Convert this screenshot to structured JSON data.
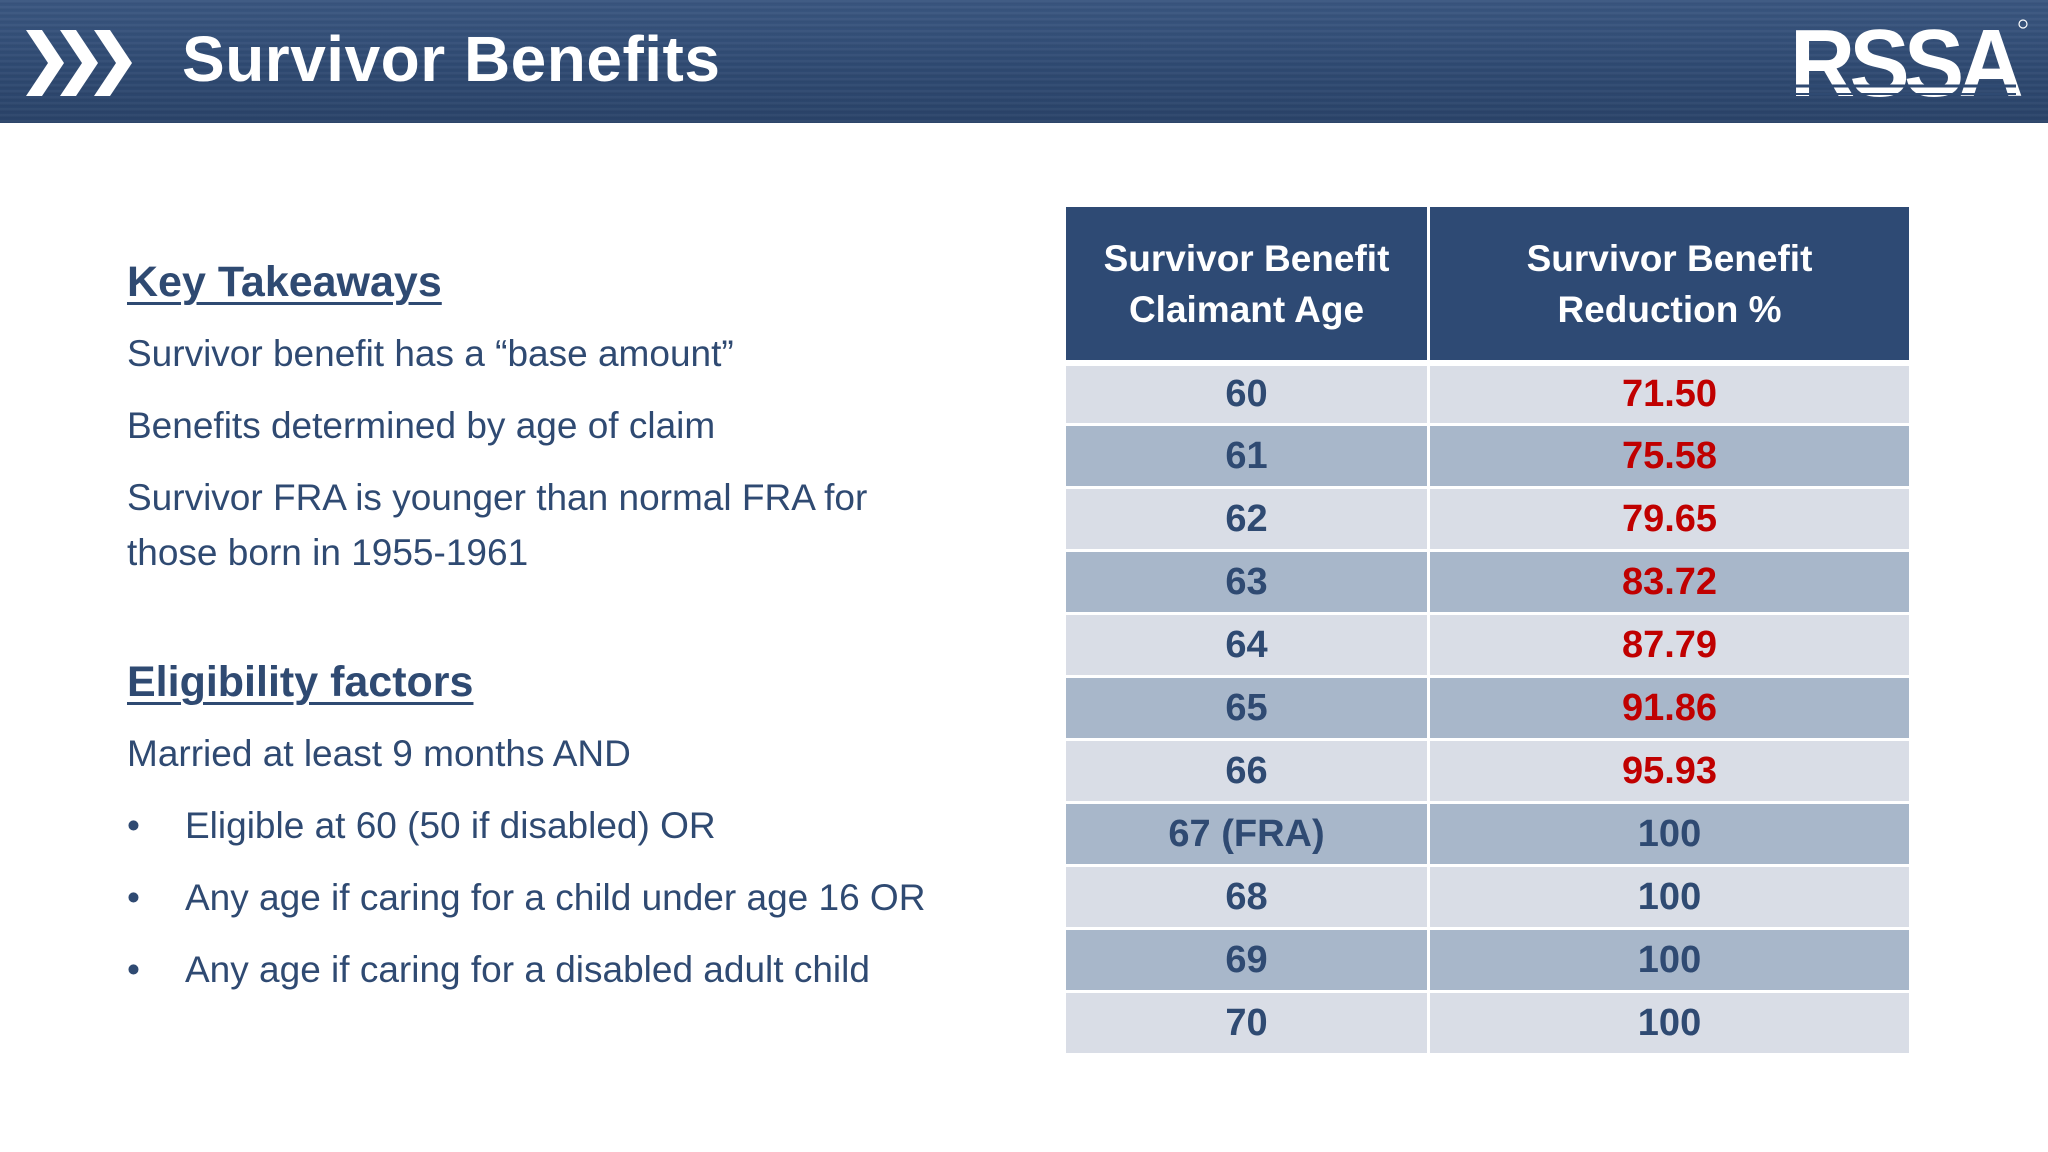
{
  "header": {
    "title": "Survivor Benefits",
    "logo_text": "RSSA",
    "brand_color": "#2f4a72"
  },
  "key_takeaways": {
    "heading": "Key Takeaways",
    "items": [
      "Survivor benefit has a “base amount”",
      "Benefits determined by age of claim",
      "Survivor FRA is younger than normal FRA for those born in 1955-1961"
    ]
  },
  "eligibility": {
    "heading": "Eligibility factors",
    "intro": "Married at least 9 months AND",
    "bullet_char": "•",
    "bullets": [
      "Eligible at 60 (50 if disabled) OR",
      "Any age if caring for a child under age 16 OR",
      "Any age if caring for a disabled adult child"
    ]
  },
  "table": {
    "headers": [
      "Survivor Benefit Claimant Age",
      "Survivor Benefit Reduction %"
    ],
    "header_lines": [
      [
        "Survivor Benefit",
        "Claimant Age"
      ],
      [
        "Survivor Benefit",
        "Reduction %"
      ]
    ],
    "rows": [
      {
        "age": "60",
        "reduction": "71.50",
        "highlight": true
      },
      {
        "age": "61",
        "reduction": "75.58",
        "highlight": true
      },
      {
        "age": "62",
        "reduction": "79.65",
        "highlight": true
      },
      {
        "age": "63",
        "reduction": "83.72",
        "highlight": true
      },
      {
        "age": "64",
        "reduction": "87.79",
        "highlight": true
      },
      {
        "age": "65",
        "reduction": "91.86",
        "highlight": true
      },
      {
        "age": "66",
        "reduction": "95.93",
        "highlight": true
      },
      {
        "age": "67 (FRA)",
        "reduction": "100",
        "highlight": false
      },
      {
        "age": "68",
        "reduction": "100",
        "highlight": false
      },
      {
        "age": "69",
        "reduction": "100",
        "highlight": false
      },
      {
        "age": "70",
        "reduction": "100",
        "highlight": false
      }
    ],
    "colors": {
      "header_bg": "#2e4a74",
      "row_light": "#d9dde6",
      "row_dark": "#a8b7ca",
      "reduced_text": "#c00000",
      "normal_text": "#2f4a72"
    }
  }
}
